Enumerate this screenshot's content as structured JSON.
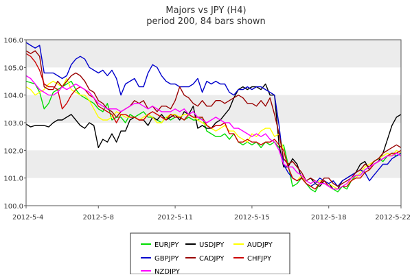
{
  "chart_data": {
    "type": "line",
    "title": "Majors vs JPY (H4)",
    "subtitle": "period 200, 84 bars shown",
    "xlabel": "",
    "ylabel": "",
    "ylim": [
      100.0,
      106.0
    ],
    "y_ticks": [
      "100.0",
      "101.0",
      "102.0",
      "103.0",
      "104.0",
      "105.0",
      "106.0"
    ],
    "x_tick_labels": [
      "2012-5-4",
      "2012-5-8",
      "2012-5-11",
      "2012-5-15",
      "2012-5-18",
      "2012-5-22"
    ],
    "x_tick_bars": [
      0,
      16,
      33,
      50,
      67,
      83
    ],
    "grid": "horizontal alternating bands",
    "legend_position": "bottom-center",
    "series": [
      {
        "name": "EURJPY",
        "color": "#00dd00",
        "values": [
          104.5,
          104.45,
          104.4,
          104.1,
          103.5,
          103.7,
          104.1,
          104.2,
          104.3,
          104.4,
          104.5,
          104.2,
          104.0,
          103.9,
          103.8,
          103.7,
          103.5,
          103.4,
          103.7,
          103.1,
          103.2,
          103.2,
          103.0,
          103.3,
          103.2,
          103.3,
          103.4,
          103.2,
          103.2,
          103.1,
          103.0,
          103.2,
          103.1,
          103.2,
          103.2,
          103.1,
          103.2,
          103.1,
          103.1,
          103.2,
          102.7,
          102.6,
          102.5,
          102.5,
          102.6,
          102.4,
          102.6,
          102.3,
          102.2,
          102.3,
          102.2,
          102.3,
          102.1,
          102.3,
          102.2,
          102.3,
          102.1,
          102.2,
          101.5,
          100.7,
          100.8,
          101.0,
          100.8,
          100.6,
          100.5,
          100.8,
          100.9,
          100.7,
          100.6,
          100.5,
          100.7,
          100.6,
          100.9,
          101.1,
          101.1,
          101.3,
          101.4,
          101.6,
          101.7,
          101.6,
          101.8,
          101.9,
          101.8,
          101.9
        ]
      },
      {
        "name": "USDJPY",
        "color": "#000000",
        "values": [
          102.95,
          102.85,
          102.9,
          102.9,
          102.9,
          102.85,
          103.0,
          103.1,
          103.1,
          103.2,
          103.3,
          103.1,
          102.9,
          102.8,
          103.0,
          102.9,
          102.1,
          102.4,
          102.3,
          102.6,
          102.3,
          102.7,
          102.7,
          103.1,
          103.2,
          103.1,
          103.1,
          102.9,
          103.2,
          103.1,
          103.3,
          103.1,
          103.2,
          103.3,
          103.1,
          103.4,
          103.3,
          103.6,
          102.8,
          102.9,
          102.8,
          102.8,
          103.0,
          103.1,
          103.3,
          103.5,
          103.9,
          104.2,
          104.3,
          104.2,
          104.3,
          104.3,
          104.2,
          104.4,
          104.0,
          104.0,
          102.2,
          101.4,
          101.4,
          101.7,
          101.5,
          101.0,
          100.9,
          101.0,
          100.8,
          100.7,
          100.9,
          100.8,
          100.6,
          100.6,
          100.9,
          101.0,
          101.1,
          101.2,
          101.5,
          101.6,
          101.3,
          101.5,
          101.6,
          101.9,
          102.4,
          102.9,
          103.2,
          103.3
        ]
      },
      {
        "name": "AUDJPY",
        "color": "#ffff00",
        "values": [
          104.3,
          104.2,
          104.0,
          104.1,
          104.2,
          104.4,
          104.5,
          104.4,
          104.3,
          104.6,
          104.2,
          104.1,
          104.0,
          104.0,
          103.8,
          103.5,
          103.2,
          103.1,
          103.1,
          103.2,
          103.4,
          103.3,
          103.2,
          103.2,
          103.2,
          103.1,
          103.2,
          103.3,
          103.2,
          103.0,
          103.0,
          103.2,
          103.3,
          103.3,
          103.2,
          103.3,
          103.3,
          103.2,
          103.1,
          103.0,
          102.9,
          102.8,
          102.7,
          102.8,
          102.9,
          102.7,
          102.7,
          102.5,
          102.4,
          102.3,
          102.6,
          102.5,
          102.7,
          102.8,
          102.8,
          102.5,
          102.6,
          102.0,
          101.4,
          101.0,
          100.9,
          101.1,
          100.8,
          100.7,
          100.8,
          100.9,
          100.9,
          100.8,
          100.7,
          100.6,
          100.7,
          100.8,
          100.9,
          101.0,
          101.2,
          101.4,
          101.5,
          101.6,
          101.7,
          101.8,
          101.9,
          101.8,
          102.0,
          101.9
        ]
      },
      {
        "name": "GBPJPY",
        "color": "#0000cc",
        "values": [
          105.9,
          105.8,
          105.7,
          105.8,
          104.8,
          104.8,
          104.8,
          104.7,
          104.6,
          104.7,
          105.1,
          105.3,
          105.4,
          105.3,
          105.0,
          104.9,
          104.8,
          104.9,
          104.7,
          104.9,
          104.6,
          104.0,
          104.4,
          104.5,
          104.6,
          104.3,
          104.3,
          104.8,
          105.1,
          105.0,
          104.7,
          104.5,
          104.4,
          104.4,
          104.3,
          104.3,
          104.3,
          104.4,
          104.6,
          104.1,
          104.5,
          104.4,
          104.5,
          104.4,
          104.4,
          104.1,
          104.0,
          104.2,
          104.2,
          104.3,
          104.2,
          104.3,
          104.3,
          104.2,
          104.1,
          104.0,
          102.9,
          101.5,
          101.2,
          101.0,
          100.9,
          101.0,
          100.8,
          100.7,
          100.8,
          101.0,
          100.9,
          100.8,
          100.9,
          100.7,
          100.9,
          101.0,
          101.1,
          101.2,
          101.3,
          101.2,
          100.9,
          101.1,
          101.3,
          101.5,
          101.5,
          101.7,
          101.8,
          101.9
        ]
      },
      {
        "name": "CADJPY",
        "color": "#990000",
        "values": [
          105.6,
          105.5,
          105.6,
          105.4,
          104.3,
          104.2,
          104.2,
          104.5,
          104.3,
          104.5,
          104.7,
          104.8,
          104.7,
          104.5,
          104.2,
          104.1,
          103.8,
          103.7,
          103.5,
          103.4,
          103.2,
          103.4,
          103.5,
          103.6,
          103.8,
          103.7,
          103.8,
          103.5,
          103.6,
          103.4,
          103.6,
          103.6,
          103.5,
          103.8,
          104.3,
          104.0,
          103.9,
          103.7,
          103.6,
          103.8,
          103.6,
          103.6,
          103.8,
          103.8,
          103.7,
          103.8,
          103.9,
          104.0,
          103.9,
          103.7,
          103.7,
          103.6,
          103.8,
          103.6,
          103.9,
          103.3,
          102.6,
          101.7,
          101.5,
          101.6,
          101.4,
          101.2,
          100.9,
          101.0,
          100.9,
          100.8,
          101.0,
          101.0,
          100.8,
          100.7,
          100.8,
          100.9,
          101.0,
          101.2,
          101.3,
          101.5,
          101.4,
          101.6,
          101.7,
          101.9,
          102.0,
          102.1,
          102.2,
          102.1
        ]
      },
      {
        "name": "CHFJPY",
        "color": "#cc0000",
        "values": [
          105.5,
          105.4,
          105.2,
          104.9,
          104.4,
          104.3,
          104.3,
          104.2,
          103.5,
          103.7,
          104.0,
          104.2,
          104.3,
          104.2,
          104.0,
          103.9,
          103.6,
          103.5,
          103.4,
          103.3,
          103.0,
          103.3,
          103.3,
          103.2,
          103.2,
          103.1,
          103.1,
          103.3,
          103.4,
          103.3,
          103.2,
          103.1,
          103.3,
          103.2,
          103.2,
          103.1,
          103.3,
          103.2,
          103.2,
          103.2,
          102.9,
          102.8,
          102.9,
          102.9,
          103.0,
          102.6,
          102.6,
          102.3,
          102.3,
          102.4,
          102.3,
          102.3,
          102.2,
          102.3,
          102.3,
          102.4,
          102.2,
          102.0,
          101.4,
          101.0,
          100.9,
          101.0,
          100.8,
          100.7,
          100.6,
          100.8,
          100.9,
          100.7,
          100.6,
          100.6,
          100.7,
          100.7,
          100.9,
          101.0,
          101.0,
          101.2,
          101.3,
          101.5,
          101.6,
          101.7,
          101.8,
          101.9,
          101.9,
          102.0
        ]
      },
      {
        "name": "NZDJPY",
        "color": "#ff00ff",
        "values": [
          104.7,
          104.6,
          104.4,
          104.2,
          104.1,
          104.0,
          104.0,
          104.1,
          104.3,
          104.2,
          104.3,
          104.4,
          104.3,
          104.2,
          104.1,
          103.9,
          103.7,
          103.6,
          103.5,
          103.5,
          103.5,
          103.4,
          103.5,
          103.6,
          103.7,
          103.7,
          103.6,
          103.5,
          103.6,
          103.5,
          103.4,
          103.4,
          103.4,
          103.5,
          103.4,
          103.5,
          103.3,
          103.4,
          103.2,
          103.1,
          103.0,
          103.1,
          103.2,
          103.1,
          103.0,
          103.0,
          102.8,
          102.8,
          102.7,
          102.6,
          102.5,
          102.6,
          102.5,
          102.6,
          102.4,
          102.3,
          102.0,
          101.5,
          101.4,
          101.4,
          101.2,
          101.1,
          100.9,
          100.8,
          100.9,
          100.8,
          100.8,
          100.7,
          100.6,
          100.6,
          100.7,
          100.8,
          101.0,
          101.1,
          101.1,
          101.3,
          101.4,
          101.5,
          101.6,
          101.7,
          101.8,
          101.8,
          101.9,
          101.8
        ]
      }
    ]
  }
}
